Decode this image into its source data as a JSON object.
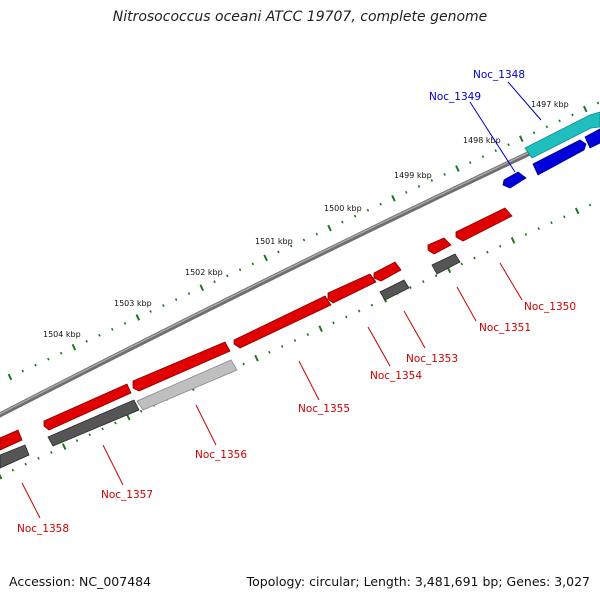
{
  "title": "Nitrosococcus oceani ATCC 19707, complete genome",
  "footer": {
    "accession": "Accession: NC_007484",
    "summary": "Topology: circular; Length: 3,481,691 bp; Genes: 3,027"
  },
  "ruler": {
    "ticks": [
      {
        "label": "1497 kbp"
      },
      {
        "label": "1498 kbp"
      },
      {
        "label": "1499 kbp"
      },
      {
        "label": "1500 kbp"
      },
      {
        "label": "1501 kbp"
      },
      {
        "label": "1502 kbp"
      },
      {
        "label": "1503 kbp"
      },
      {
        "label": "1504 kbp"
      }
    ]
  },
  "colors": {
    "backbone": "#808080",
    "ticks": "#1a7a1a",
    "red_gene": "#e00000",
    "dark_gene": "#555555",
    "light_gene": "#bfbfbf",
    "blue_gene": "#0000dd",
    "cyan_gene": "#1fbfbf",
    "red_label": "#cc0000",
    "blue_label": "#0000cc"
  },
  "genes": [
    {
      "name": "Noc_1348",
      "color": "blue_label"
    },
    {
      "name": "Noc_1349",
      "color": "blue_label"
    },
    {
      "name": "Noc_1350",
      "color": "red_label"
    },
    {
      "name": "Noc_1351",
      "color": "red_label"
    },
    {
      "name": "Noc_1353",
      "color": "red_label"
    },
    {
      "name": "Noc_1354",
      "color": "red_label"
    },
    {
      "name": "Noc_1355",
      "color": "red_label"
    },
    {
      "name": "Noc_1356",
      "color": "red_label"
    },
    {
      "name": "Noc_1357",
      "color": "red_label"
    },
    {
      "name": "Noc_1358",
      "color": "red_label"
    }
  ]
}
